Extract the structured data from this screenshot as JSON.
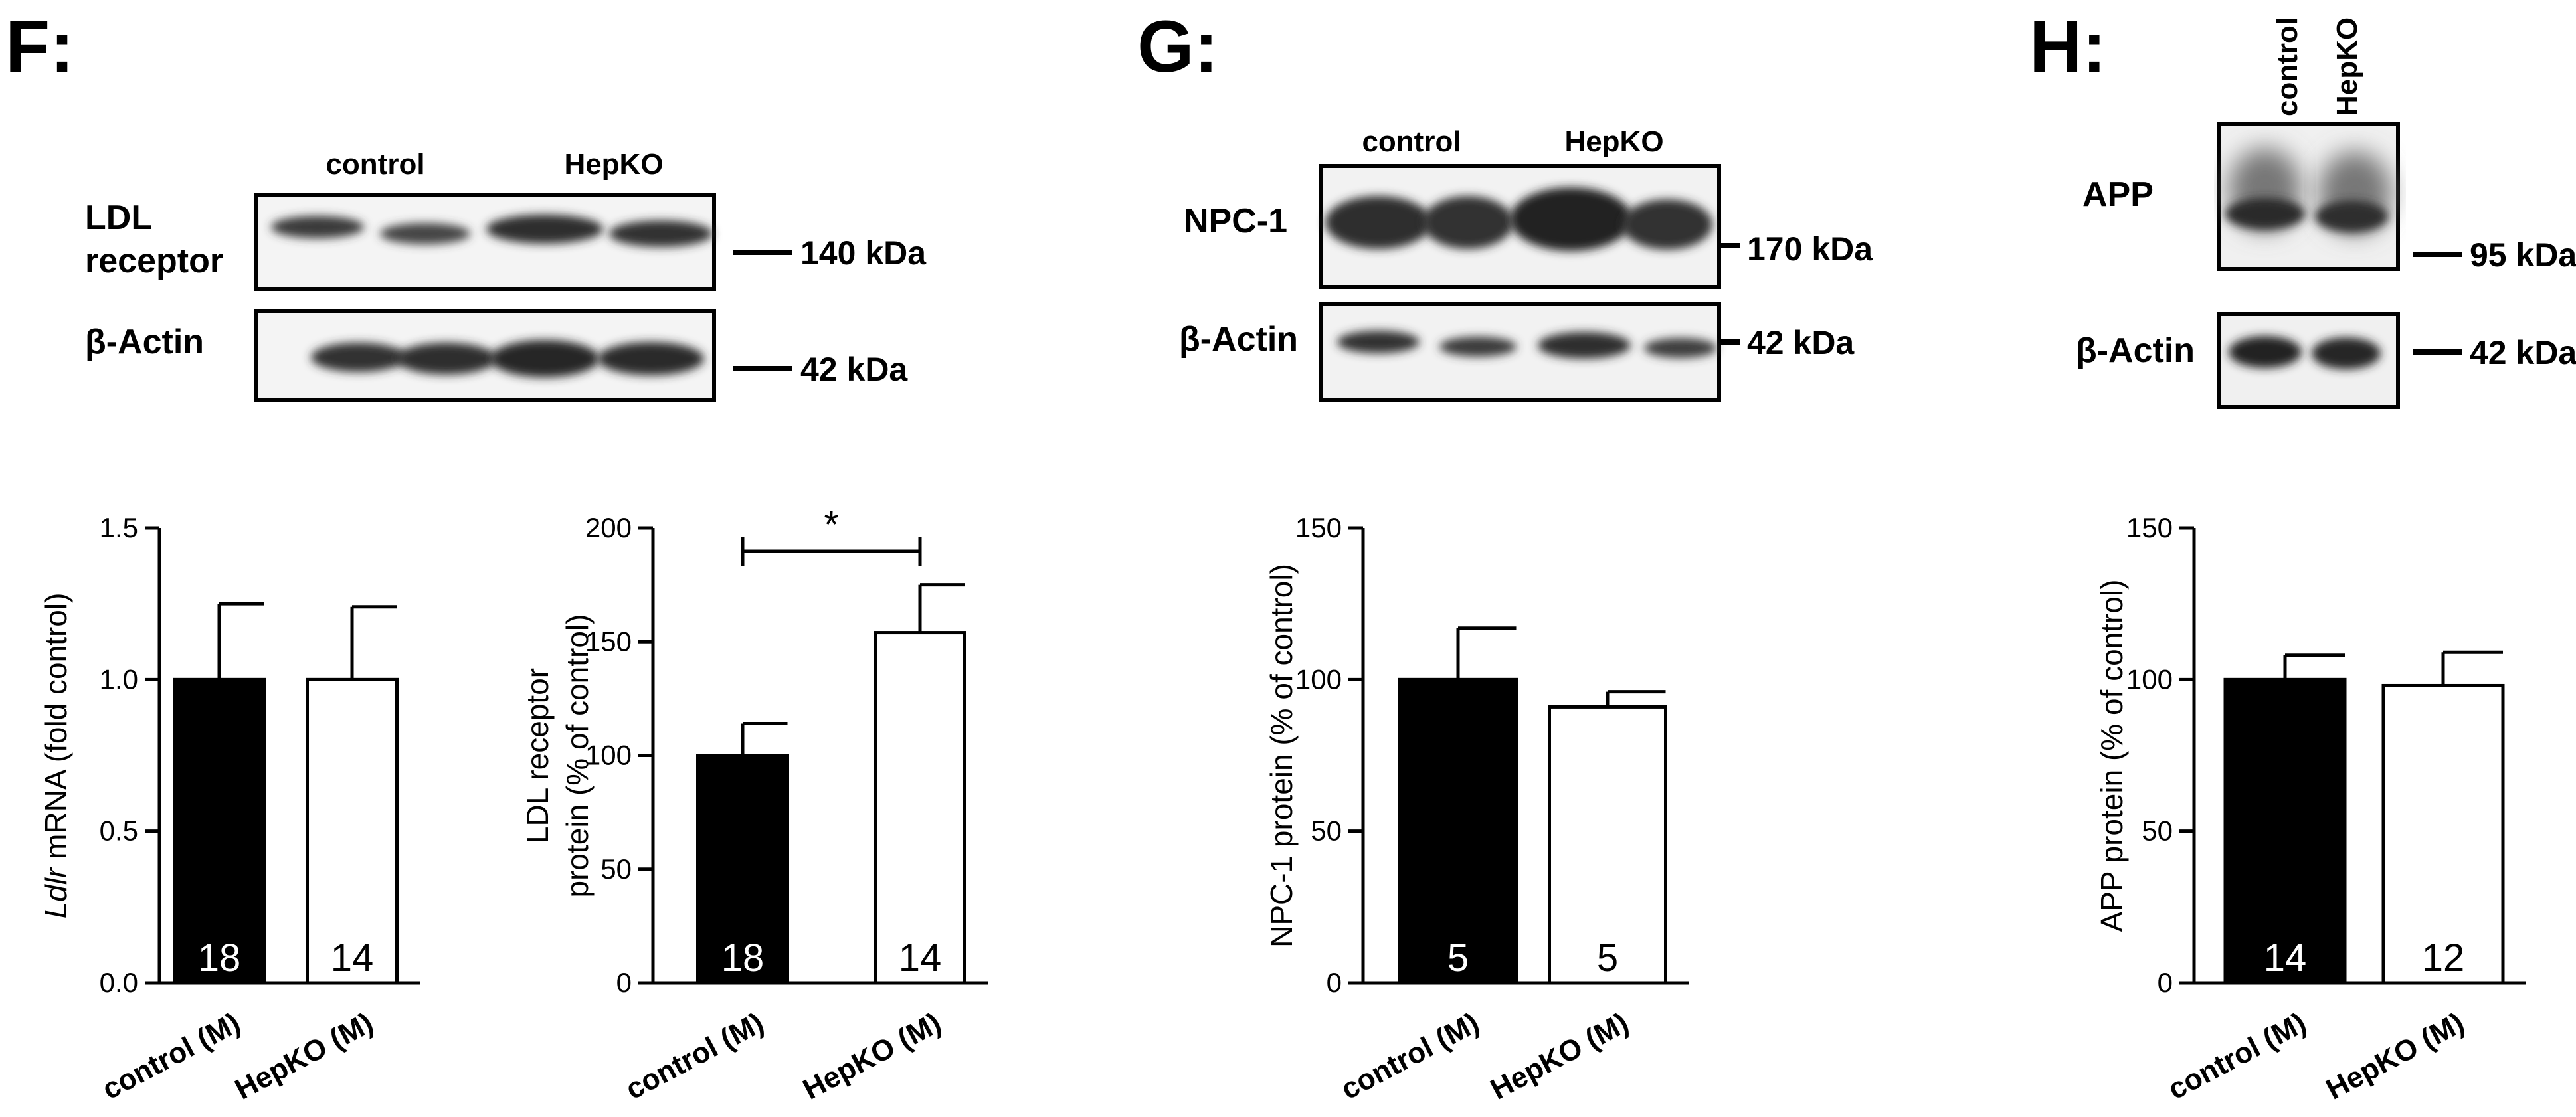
{
  "panels": {
    "F": {
      "letter": "F:"
    },
    "G": {
      "letter": "G:"
    },
    "H": {
      "letter": "H:"
    }
  },
  "blots": {
    "F": {
      "lane_groups": [
        "control",
        "HepKO"
      ],
      "rows": [
        {
          "label_lines": [
            "LDL",
            "receptor"
          ],
          "marker": "140 kDa",
          "bands": 4
        },
        {
          "label_lines": [
            "β-Actin"
          ],
          "marker": "42 kDa",
          "bands": 4
        }
      ]
    },
    "G": {
      "lane_groups": [
        "control",
        "HepKO"
      ],
      "rows": [
        {
          "label_lines": [
            "NPC-1"
          ],
          "marker": "170 kDa",
          "bands": 4
        },
        {
          "label_lines": [
            "β-Actin"
          ],
          "marker": "42 kDa",
          "bands": 4
        }
      ]
    },
    "H": {
      "lane_groups": [
        "control",
        "HepKO"
      ],
      "rows": [
        {
          "label_lines": [
            "APP"
          ],
          "marker": "95 kDa",
          "bands": 2
        },
        {
          "label_lines": [
            "β-Actin"
          ],
          "marker": "42 kDa",
          "bands": 2
        }
      ]
    }
  },
  "colors": {
    "control_bar": "#000000",
    "hepko_bar": "#ffffff",
    "axis": "#000000",
    "band": "#2e2e2e"
  },
  "chart_data": [
    {
      "id": "ldlr-mrna",
      "type": "bar",
      "ylabel_parts": [
        [
          "Ldlr",
          true
        ],
        [
          " mRNA (fold control)",
          false
        ]
      ],
      "ylim": [
        0,
        1.5
      ],
      "yticks": [
        "0.0",
        "0.5",
        "1.0",
        "1.5"
      ],
      "categories": [
        "control (M)",
        "HepKO (M)"
      ],
      "values": [
        1.0,
        1.0
      ],
      "errors": [
        0.25,
        0.24
      ],
      "n": [
        "18",
        "14"
      ],
      "significance": null
    },
    {
      "id": "ldlr-protein",
      "type": "bar",
      "ylabel_lines": [
        "LDL receptor",
        "protein (% of control)"
      ],
      "ylim": [
        0,
        200
      ],
      "yticks": [
        "0",
        "50",
        "100",
        "150",
        "200"
      ],
      "categories": [
        "control (M)",
        "HepKO (M)"
      ],
      "values": [
        100,
        154
      ],
      "errors": [
        14,
        21
      ],
      "n": [
        "18",
        "14"
      ],
      "significance": "*"
    },
    {
      "id": "npc1-protein",
      "type": "bar",
      "ylabel_lines": [
        "NPC-1 protein (% of control)"
      ],
      "ylim": [
        0,
        150
      ],
      "yticks": [
        "0",
        "50",
        "100",
        "150"
      ],
      "categories": [
        "control (M)",
        "HepKO (M)"
      ],
      "values": [
        100,
        91
      ],
      "errors": [
        17,
        5
      ],
      "n": [
        "5",
        "5"
      ],
      "significance": null
    },
    {
      "id": "app-protein",
      "type": "bar",
      "ylabel_lines": [
        "APP protein (% of control)"
      ],
      "ylim": [
        0,
        150
      ],
      "yticks": [
        "0",
        "50",
        "100",
        "150"
      ],
      "categories": [
        "control (M)",
        "HepKO (M)"
      ],
      "values": [
        100,
        98
      ],
      "errors": [
        8,
        11
      ],
      "n": [
        "14",
        "12"
      ],
      "significance": null
    }
  ]
}
